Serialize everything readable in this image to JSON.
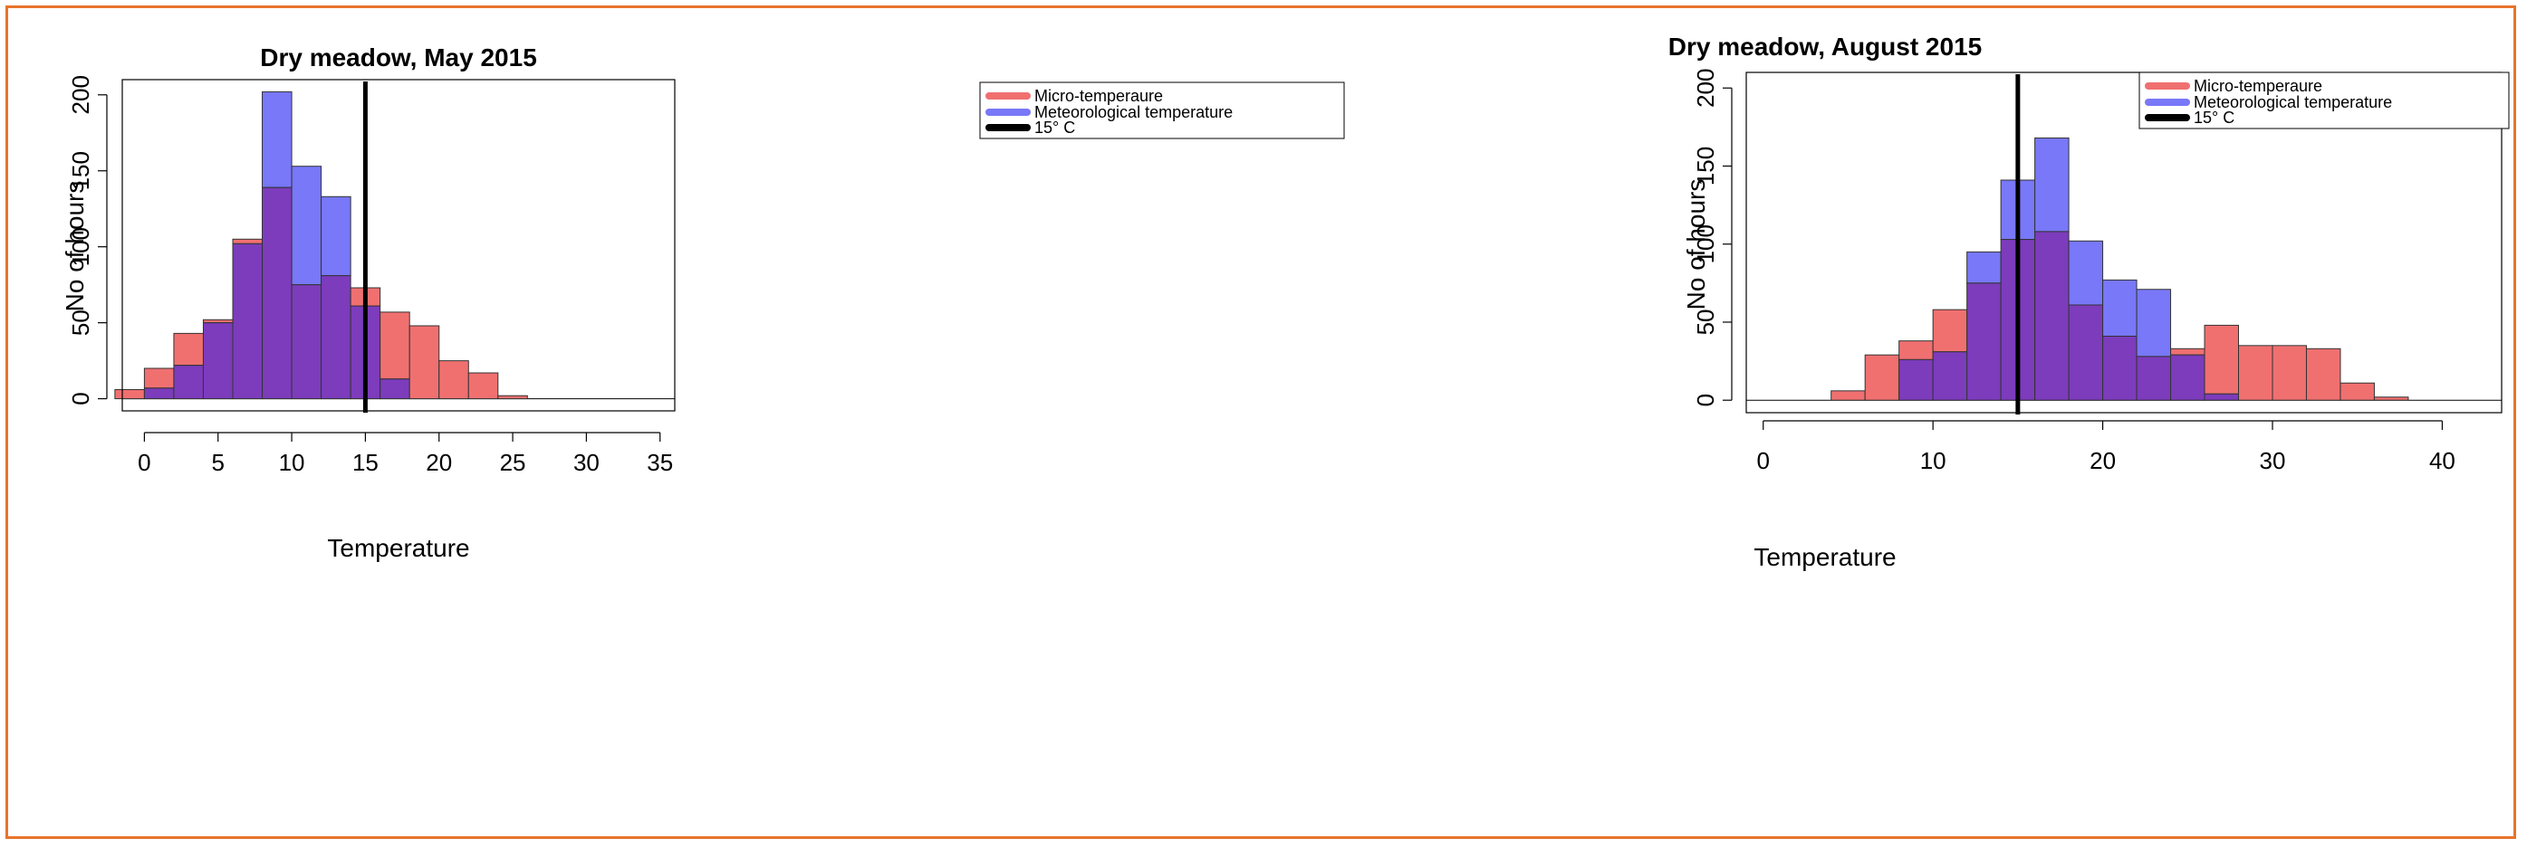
{
  "colors": {
    "micro": "#f07070",
    "meteo": "#7878f8",
    "overlap": "#7c3cbc",
    "threshold": "#000000",
    "frame": "#e8742c"
  },
  "chart_data": [
    {
      "type": "bar",
      "title": "Dry meadow, May 2015",
      "xlabel": "Temperature",
      "ylabel": "No of hours",
      "xlim": [
        -1.5,
        36
      ],
      "ylim": [
        -8,
        210
      ],
      "xticks": [
        0,
        5,
        10,
        15,
        20,
        25,
        30,
        35
      ],
      "yticks": [
        0,
        50,
        100,
        150,
        200
      ],
      "bin_width": 2,
      "bins": [
        -2,
        0,
        2,
        4,
        6,
        8,
        10,
        12,
        14,
        16,
        18,
        20,
        22,
        24
      ],
      "series": [
        {
          "name": "Micro-temperaure",
          "values": [
            6,
            20,
            43,
            52,
            105,
            139,
            75,
            81,
            73,
            57,
            48,
            25,
            17,
            2
          ]
        },
        {
          "name": "Meteorological temperature",
          "values": [
            0,
            7,
            22,
            50,
            102,
            202,
            153,
            133,
            61,
            13,
            0,
            0,
            0,
            0
          ]
        }
      ],
      "vline": {
        "x": 15,
        "label": "15° C"
      },
      "legend": {
        "position": "top-right",
        "entries": [
          "Micro-temperaure",
          "Meteorological temperature",
          "15° C"
        ]
      },
      "grid": false
    },
    {
      "type": "bar",
      "title": "Dry meadow, August 2015",
      "xlabel": "Temperature",
      "ylabel": "No of hours",
      "xlim": [
        -1,
        43.5
      ],
      "ylim": [
        -8,
        210
      ],
      "xticks": [
        0,
        10,
        20,
        30,
        40
      ],
      "yticks": [
        0,
        50,
        100,
        150,
        200
      ],
      "bin_width": 2,
      "bins": [
        0,
        2,
        4,
        6,
        8,
        10,
        12,
        14,
        16,
        18,
        20,
        22,
        24,
        26,
        28,
        30,
        32,
        34,
        36,
        38,
        40,
        42
      ],
      "series": [
        {
          "name": "Micro-temperaure",
          "values": [
            0,
            0,
            6,
            29,
            38,
            58,
            75,
            103,
            108,
            61,
            41,
            28,
            33,
            48,
            35,
            35,
            33,
            11,
            2,
            0,
            0,
            0
          ]
        },
        {
          "name": "Meteorological temperature",
          "values": [
            0,
            0,
            0,
            0,
            26,
            31,
            95,
            141,
            168,
            102,
            77,
            71,
            29,
            4,
            0,
            0,
            0,
            0,
            0,
            0,
            0,
            0
          ]
        }
      ],
      "vline": {
        "x": 15,
        "label": "15° C"
      },
      "legend": {
        "position": "top-right",
        "entries": [
          "Micro-temperaure",
          "Meteorological temperature",
          "15° C"
        ]
      },
      "grid": false
    }
  ]
}
